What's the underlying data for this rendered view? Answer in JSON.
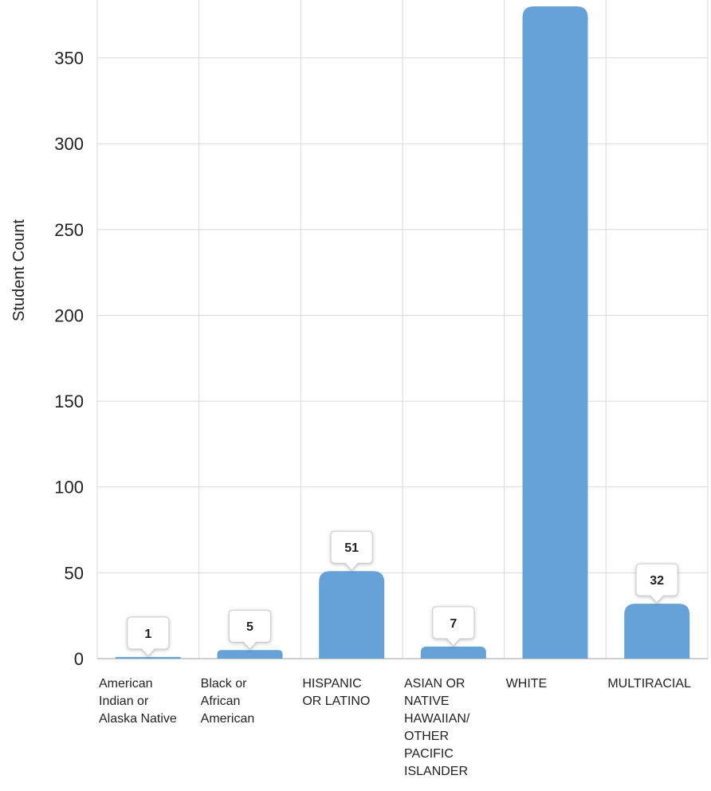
{
  "chart_data": {
    "type": "bar",
    "title": "",
    "xlabel": "",
    "ylabel": "Student Count",
    "ylim": [
      0,
      380
    ],
    "yticks": [
      0,
      50,
      100,
      150,
      200,
      250,
      300,
      350
    ],
    "grid": true,
    "categories": [
      [
        "American",
        "Indian or",
        "Alaska Native"
      ],
      [
        "Black or",
        "African",
        "American"
      ],
      [
        "HISPANIC",
        "OR LATINO"
      ],
      [
        "ASIAN OR",
        "NATIVE",
        "HAWAIIAN/",
        "OTHER",
        "PACIFIC",
        "ISLANDER"
      ],
      [
        "WHITE"
      ],
      [
        "MULTIRACIAL"
      ]
    ],
    "values": [
      1,
      5,
      51,
      7,
      380,
      32
    ],
    "data_labels": [
      "1",
      "5",
      "51",
      "7",
      "",
      "32"
    ],
    "bar_color": "#64a2d8",
    "grid_color": "#d9d9d9",
    "axis_color": "#bfbfbf"
  }
}
